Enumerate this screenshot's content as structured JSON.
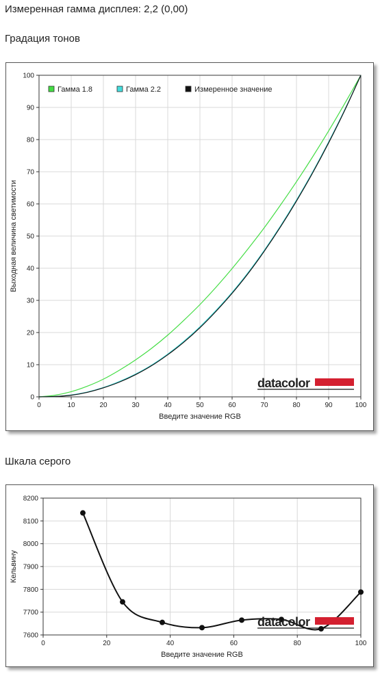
{
  "page": {
    "title": "Измеренная гамма дисплея: 2,2 (0,00)",
    "section1_title": "Градация тонов",
    "section2_title": "Шкала серого"
  },
  "logo": {
    "text": "datacolor",
    "accent_color": "#d42030"
  },
  "chart_data": [
    {
      "type": "line",
      "xlabel": "Введите значение RGB",
      "ylabel": "Выходная величина светимости",
      "xlim": [
        0,
        100
      ],
      "ylim": [
        0,
        100
      ],
      "xticks": [
        0,
        10,
        20,
        30,
        40,
        50,
        60,
        70,
        80,
        90,
        100
      ],
      "yticks": [
        0,
        10,
        20,
        30,
        40,
        50,
        60,
        70,
        80,
        90,
        100
      ],
      "grid": true,
      "legend_position": "top",
      "series": [
        {
          "name": "Гамма 1.8",
          "color": "#44dd44",
          "x": [
            0,
            5,
            10,
            15,
            20,
            25,
            30,
            35,
            40,
            45,
            50,
            55,
            60,
            65,
            70,
            75,
            80,
            85,
            90,
            95,
            100
          ],
          "values": [
            0,
            0.5,
            1.6,
            3.3,
            5.5,
            8.3,
            11.5,
            15.1,
            19.2,
            23.8,
            28.7,
            34.1,
            39.9,
            46.1,
            52.6,
            59.6,
            66.9,
            74.6,
            82.7,
            91.2,
            100
          ]
        },
        {
          "name": "Гамма 2.2",
          "color": "#44dddd",
          "x": [
            0,
            5,
            10,
            15,
            20,
            25,
            30,
            35,
            40,
            45,
            50,
            55,
            60,
            65,
            70,
            75,
            80,
            85,
            90,
            95,
            100
          ],
          "values": [
            0,
            0.1,
            0.6,
            1.5,
            2.9,
            4.8,
            7.1,
            9.9,
            13.3,
            17.3,
            21.8,
            26.9,
            32.5,
            38.7,
            45.6,
            53.1,
            61.2,
            69.9,
            79.3,
            89.3,
            100
          ]
        },
        {
          "name": "Измеренное значение",
          "color": "#111111",
          "x": [
            0,
            5,
            10,
            15,
            20,
            25,
            30,
            35,
            40,
            45,
            50,
            55,
            60,
            65,
            70,
            75,
            80,
            85,
            90,
            95,
            100
          ],
          "values": [
            0,
            0.1,
            0.5,
            1.4,
            2.8,
            4.6,
            6.9,
            9.7,
            13.1,
            17.0,
            21.5,
            26.6,
            32.2,
            38.4,
            45.3,
            52.8,
            60.9,
            69.6,
            79.0,
            89.1,
            100
          ]
        }
      ]
    },
    {
      "type": "line",
      "xlabel": "Введите значение RGB",
      "ylabel": "Кельвину",
      "xlim": [
        0,
        100
      ],
      "ylim": [
        7600,
        8200
      ],
      "xticks": [
        0,
        20,
        40,
        60,
        80,
        100
      ],
      "yticks": [
        7600,
        7700,
        7800,
        7900,
        8000,
        8100,
        8200
      ],
      "grid": true,
      "series": [
        {
          "color": "#111111",
          "x": [
            12.5,
            25,
            37.5,
            50,
            62.5,
            75,
            87.5,
            100
          ],
          "values": [
            8135,
            7745,
            7655,
            7632,
            7665,
            7668,
            7627,
            7788
          ]
        }
      ]
    }
  ]
}
